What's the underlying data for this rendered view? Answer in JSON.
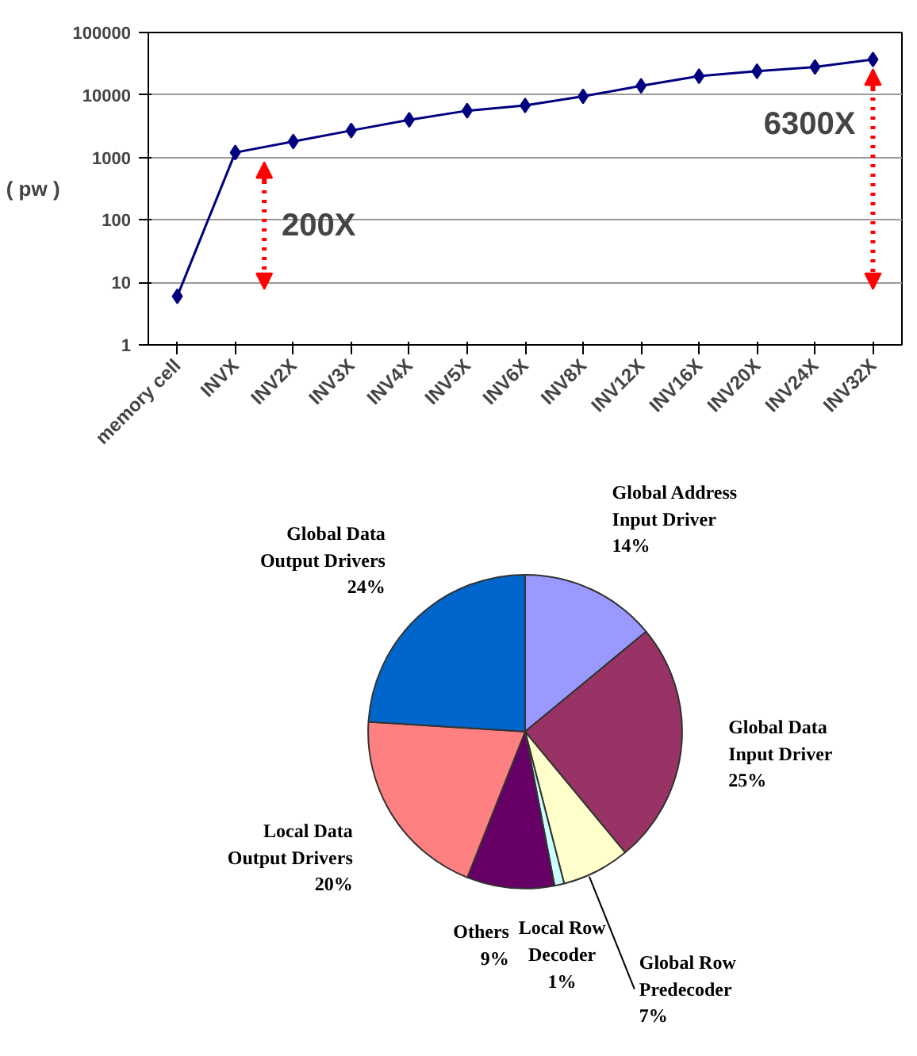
{
  "chart_data": [
    {
      "type": "line",
      "ylabel": "( pw )",
      "categories": [
        "memory cell",
        "INVX",
        "INV2X",
        "INV3X",
        "INV4X",
        "INV5X",
        "INV6X",
        "INV8X",
        "INV12X",
        "INV16X",
        "INV20X",
        "INV24X",
        "INV32X"
      ],
      "series": [
        {
          "color": "#000080",
          "values": [
            6,
            1200,
            1800,
            2700,
            4000,
            5600,
            6800,
            9500,
            14000,
            20000,
            24000,
            28000,
            37000
          ]
        }
      ],
      "log": "y",
      "ylim": [
        1,
        100000
      ],
      "yticks": [
        1,
        10,
        100,
        1000,
        10000,
        100000
      ],
      "grid": "y",
      "marker": "diamond",
      "line_style": "solid",
      "annotations": [
        "200X",
        "6300X"
      ]
    },
    {
      "type": "pie",
      "categories": [
        "Global Address\nInput Driver",
        "Global Data\nInput Driver",
        "Global Row\nPredecoder",
        "Local Row\nDecoder",
        "Others",
        "Local Data\nOutput Drivers",
        "Global Data\nOutput Drivers"
      ],
      "values": [
        14,
        25,
        7,
        1,
        9,
        20,
        24
      ],
      "colors": [
        "#9999ff",
        "#993366",
        "#ffffcc",
        "#ccffff",
        "#660066",
        "#ff8080",
        "#0066cc"
      ],
      "value_labels": [
        "14%",
        "25%",
        "7%",
        "1%",
        "9%",
        "20%",
        "24%"
      ]
    }
  ]
}
